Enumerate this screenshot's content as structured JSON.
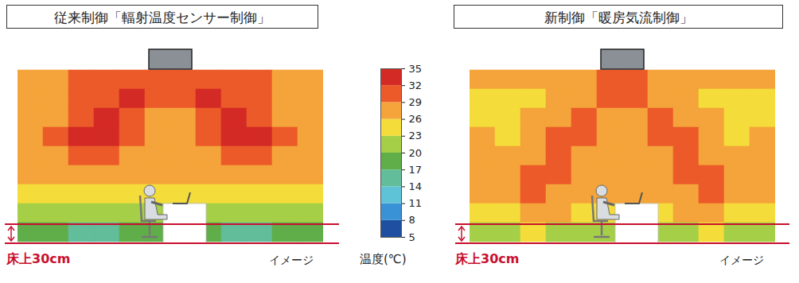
{
  "chart_data": {
    "type": "heatmap",
    "tick_labels": false,
    "colorbar": {
      "label": "温度(℃)",
      "range": [
        5,
        35
      ],
      "ticks": [
        5,
        8,
        11,
        14,
        17,
        20,
        23,
        26,
        29,
        32,
        35
      ],
      "colors": [
        "#1e4fa0",
        "#3a92d6",
        "#5ec3d6",
        "#62bd9a",
        "#5fae4a",
        "#a6cf48",
        "#f4dc3a",
        "#f4a43a",
        "#ec5a2a",
        "#d42a26"
      ]
    },
    "panels": [
      {
        "title": "従来制御「輻射温度センサー制御」",
        "floor_label": "床上30cm",
        "note": "イメージ",
        "cells": [
          [
            28,
            28,
            29,
            29,
            30,
            31,
            31,
            30,
            29,
            29,
            28,
            28
          ],
          [
            27,
            28,
            29,
            31,
            33,
            30,
            30,
            33,
            31,
            29,
            28,
            27
          ],
          [
            27,
            28,
            31,
            33,
            31,
            28,
            28,
            31,
            33,
            31,
            28,
            27
          ],
          [
            27,
            29,
            32,
            32,
            29,
            28,
            28,
            29,
            32,
            32,
            29,
            27
          ],
          [
            27,
            28,
            30,
            30,
            28,
            27,
            27,
            28,
            30,
            30,
            28,
            27
          ],
          [
            26,
            27,
            27,
            27,
            27,
            26,
            26,
            27,
            27,
            27,
            27,
            26
          ],
          [
            25,
            25,
            25,
            24,
            24,
            24,
            24,
            24,
            24,
            25,
            25,
            25
          ],
          [
            22,
            22,
            21,
            21,
            21,
            21,
            21,
            21,
            21,
            21,
            22,
            22
          ],
          [
            18,
            18,
            16,
            15,
            17,
            18,
            18,
            17,
            15,
            16,
            18,
            18
          ]
        ]
      },
      {
        "title": "新制御「暖房気流制御」",
        "floor_label": "床上30cm",
        "note": "イメージ",
        "cells": [
          [
            27,
            27,
            26,
            26,
            27,
            29,
            29,
            27,
            26,
            26,
            27,
            27
          ],
          [
            25,
            25,
            25,
            26,
            28,
            30,
            30,
            28,
            26,
            25,
            25,
            25
          ],
          [
            25,
            25,
            26,
            27,
            31,
            28,
            28,
            31,
            27,
            26,
            25,
            25
          ],
          [
            26,
            25,
            27,
            29,
            30,
            27,
            27,
            30,
            29,
            27,
            25,
            26
          ],
          [
            27,
            26,
            28,
            31,
            28,
            26,
            26,
            28,
            31,
            28,
            26,
            27
          ],
          [
            27,
            27,
            29,
            30,
            27,
            26,
            26,
            27,
            30,
            29,
            27,
            27
          ],
          [
            26,
            27,
            29,
            28,
            26,
            26,
            26,
            26,
            28,
            29,
            27,
            26
          ],
          [
            24,
            25,
            27,
            26,
            25,
            25,
            25,
            25,
            26,
            27,
            25,
            24
          ],
          [
            22,
            22,
            23,
            22,
            22,
            21,
            21,
            22,
            22,
            23,
            22,
            22
          ]
        ]
      }
    ]
  }
}
